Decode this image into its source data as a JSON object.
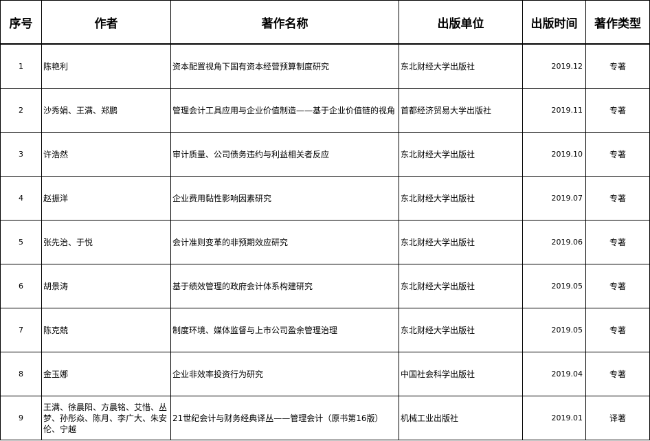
{
  "headers": [
    "序号",
    "作者",
    "著作名称",
    "出版单位",
    "出版时间",
    "著作类型"
  ],
  "rows": [
    {
      "no": "1",
      "author": "陈艳利",
      "title": "资本配置视角下国有资本经营预算制度研究",
      "publisher": "东北财经大学出版社",
      "date": "2019.12",
      "type": "专著"
    },
    {
      "no": "2",
      "author": "沙秀娟、王满、郑鹏",
      "title": "管理会计工具应用与企业价值制造——基于企业价值链的视角",
      "publisher": "首都经济贸易大学出版社",
      "date": "2019.11",
      "type": "专著"
    },
    {
      "no": "3",
      "author": "许浩然",
      "title": "审计质量、公司债务违约与利益相关者反应",
      "publisher": "东北财经大学出版社",
      "date": "2019.10",
      "type": "专著"
    },
    {
      "no": "4",
      "author": "赵振洋",
      "title": "企业费用黏性影响因素研究",
      "publisher": "东北财经大学出版社",
      "date": "2019.07",
      "type": "专著"
    },
    {
      "no": "5",
      "author": "张先治、于悦",
      "title": "会计准则变革的非预期效应研究",
      "publisher": "东北财经大学出版社",
      "date": "2019.06",
      "type": "专著"
    },
    {
      "no": "6",
      "author": "胡景涛",
      "title": "基于绩效管理的政府会计体系构建研究",
      "publisher": "东北财经大学出版社",
      "date": "2019.05",
      "type": "专著"
    },
    {
      "no": "7",
      "author": "陈克兢",
      "title": "制度环境、媒体监督与上市公司盈余管理治理",
      "publisher": "东北财经大学出版社",
      "date": "2019.05",
      "type": "专著"
    },
    {
      "no": "8",
      "author": "金玉娜",
      "title": "企业非效率投资行为研究",
      "publisher": "中国社会科学出版社",
      "date": "2019.04",
      "type": "专著"
    },
    {
      "no": "9",
      "author": "王满、徐晨阳、方晨铭、艾惜、丛梦、孙彤焱、陈月、李广大、朱安伦、宁越",
      "title": "21世纪会计与财务经典译丛——管理会计（原书第16版）",
      "publisher": "机械工业出版社",
      "date": "2019.01",
      "type": "译著"
    }
  ]
}
